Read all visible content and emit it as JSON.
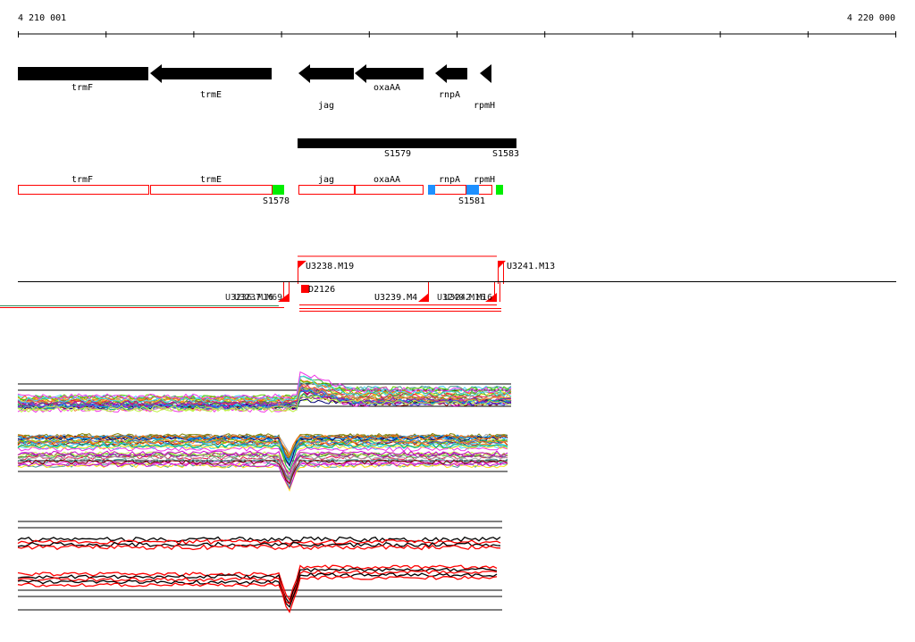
{
  "coordinates": {
    "start": "4 210 001",
    "end": "4 220 000"
  },
  "genes": [
    {
      "name": "trmF"
    },
    {
      "name": "trmE"
    },
    {
      "name": "jag"
    },
    {
      "name": "oxaAA"
    },
    {
      "name": "rnpA"
    },
    {
      "name": "rpmH"
    }
  ],
  "transcripts": [
    {
      "label": "S1579"
    },
    {
      "label": "S1583"
    }
  ],
  "segments": [
    {
      "name": "trmF"
    },
    {
      "name": "trmE"
    },
    {
      "name": "jag"
    },
    {
      "name": "oxaAA"
    },
    {
      "name": "rnpA"
    },
    {
      "name": "rpmH"
    }
  ],
  "segment_labels": [
    {
      "label": "S1578"
    },
    {
      "label": "S1581"
    }
  ],
  "features": [
    {
      "label": "U3238.M19"
    },
    {
      "label": "U3241.M13"
    },
    {
      "label": "D2126"
    },
    {
      "label": "U3239.M4"
    },
    {
      "label": "U3236.M16"
    },
    {
      "label": "U3237.M69"
    },
    {
      "label": "U3240.M16"
    },
    {
      "label": "U3242.M16"
    }
  ],
  "colors": {
    "gene": "#000000",
    "segment_outline": "#ff0000",
    "marker_green": "#00ee00",
    "marker_blue": "#1e90ff",
    "feature": "#ff0000"
  }
}
